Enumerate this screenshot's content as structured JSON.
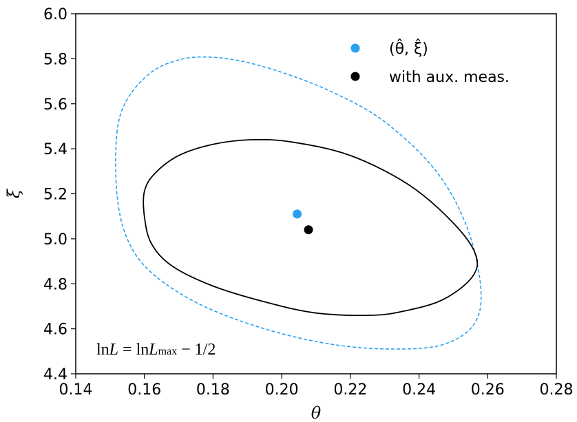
{
  "chart_data": {
    "type": "scatter",
    "xlabel": "θ",
    "ylabel": "ξ",
    "xlim": [
      0.14,
      0.28
    ],
    "ylim": [
      4.4,
      6.0
    ],
    "xticks": [
      0.14,
      0.16,
      0.18,
      0.2,
      0.22,
      0.24,
      0.26,
      0.28
    ],
    "xtick_labels": [
      "0.14",
      "0.16",
      "0.18",
      "0.20",
      "0.22",
      "0.24",
      "0.26",
      "0.28"
    ],
    "yticks": [
      4.4,
      4.6,
      4.8,
      5.0,
      5.2,
      5.4,
      5.6,
      5.8,
      6.0
    ],
    "ytick_labels": [
      "4.4",
      "4.6",
      "4.8",
      "5.0",
      "5.2",
      "5.4",
      "5.6",
      "5.8",
      "6.0"
    ],
    "grid": false,
    "legend_position": "top-right",
    "annotation": {
      "lhs_ln": "ln",
      "lhs_var": "L",
      "equals": " = ln",
      "rhs_var": "L",
      "rhs_sub": "max",
      "rhs_tail": " − 1/2"
    },
    "points": [
      {
        "name": "(θ̂, ξ̂)",
        "label_main": "(θ̂, ξ̂)",
        "x": 0.2045,
        "y": 5.11,
        "color": "#2aa0f0"
      },
      {
        "name": "with aux. meas.",
        "label_main": "with aux. meas.",
        "x": 0.2078,
        "y": 5.04,
        "color": "#000000"
      }
    ],
    "contours": [
      {
        "label": "",
        "color": "#2aa0f0",
        "style": "dashed",
        "points": [
          [
            0.152,
            5.47
          ],
          [
            0.155,
            5.62
          ],
          [
            0.162,
            5.74
          ],
          [
            0.17,
            5.795
          ],
          [
            0.178,
            5.808
          ],
          [
            0.188,
            5.79
          ],
          [
            0.2,
            5.74
          ],
          [
            0.215,
            5.65
          ],
          [
            0.23,
            5.52
          ],
          [
            0.245,
            5.3
          ],
          [
            0.254,
            5.05
          ],
          [
            0.258,
            4.78
          ],
          [
            0.256,
            4.62
          ],
          [
            0.247,
            4.53
          ],
          [
            0.233,
            4.51
          ],
          [
            0.215,
            4.53
          ],
          [
            0.195,
            4.6
          ],
          [
            0.176,
            4.71
          ],
          [
            0.162,
            4.85
          ],
          [
            0.155,
            5.0
          ],
          [
            0.152,
            5.2
          ],
          [
            0.152,
            5.47
          ]
        ]
      },
      {
        "label": "",
        "color": "#000000",
        "style": "solid",
        "points": [
          [
            0.16,
            5.21
          ],
          [
            0.163,
            5.29
          ],
          [
            0.17,
            5.37
          ],
          [
            0.18,
            5.42
          ],
          [
            0.191,
            5.44
          ],
          [
            0.203,
            5.43
          ],
          [
            0.22,
            5.37
          ],
          [
            0.237,
            5.24
          ],
          [
            0.25,
            5.07
          ],
          [
            0.2565,
            4.93
          ],
          [
            0.2555,
            4.83
          ],
          [
            0.247,
            4.73
          ],
          [
            0.236,
            4.68
          ],
          [
            0.226,
            4.66
          ],
          [
            0.21,
            4.67
          ],
          [
            0.195,
            4.72
          ],
          [
            0.18,
            4.79
          ],
          [
            0.168,
            4.88
          ],
          [
            0.162,
            4.98
          ],
          [
            0.16,
            5.1
          ],
          [
            0.16,
            5.21
          ]
        ]
      }
    ]
  }
}
